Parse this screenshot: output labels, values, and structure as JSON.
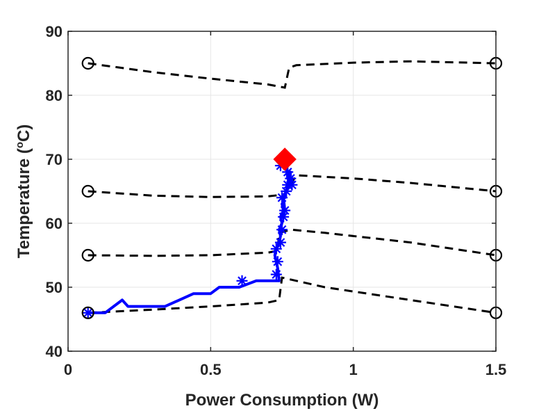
{
  "chart_data": {
    "type": "line",
    "title": "",
    "xlabel": "Power Consumption (W)",
    "ylabel_main": "Temperature (",
    "ylabel_sup": "o",
    "ylabel_end": "C)",
    "xlim": [
      0,
      1.5
    ],
    "ylim": [
      40,
      90
    ],
    "xticks": [
      0,
      0.5,
      1,
      1.5
    ],
    "xtick_labels": [
      "0",
      "0.5",
      "1",
      "1.5"
    ],
    "yticks": [
      40,
      50,
      60,
      70,
      80,
      90
    ],
    "ytick_labels": [
      "40",
      "50",
      "60",
      "70",
      "80",
      "90"
    ],
    "grid": true,
    "colors": {
      "boundary": "#000000",
      "trajectory": "#0000ff",
      "target": "#ff0000",
      "axis": "#262626"
    },
    "boundary_series": [
      {
        "name": "boundary-1",
        "x": [
          0.07,
          0.3,
          0.5,
          0.7,
          0.74,
          0.75,
          0.9,
          1.2,
          1.5
        ],
        "y": [
          46,
          46.5,
          47,
          47.6,
          48,
          51.5,
          50,
          48,
          46
        ]
      },
      {
        "name": "boundary-2",
        "x": [
          0.07,
          0.3,
          0.5,
          0.7,
          0.735,
          0.74,
          0.78,
          0.9,
          1.2,
          1.5
        ],
        "y": [
          55,
          54.9,
          55,
          55.4,
          55.7,
          58.5,
          59,
          58.5,
          57,
          55
        ]
      },
      {
        "name": "boundary-3",
        "x": [
          0.07,
          0.3,
          0.5,
          0.7,
          0.76,
          0.8,
          1.0,
          1.2,
          1.5
        ],
        "y": [
          65,
          64.3,
          64.1,
          64.2,
          64.5,
          67.5,
          67,
          66.3,
          65
        ]
      },
      {
        "name": "boundary-4",
        "x": [
          0.07,
          0.3,
          0.5,
          0.7,
          0.76,
          0.775,
          0.8,
          1.0,
          1.2,
          1.5
        ],
        "y": [
          85,
          83.6,
          82.6,
          81.7,
          81.2,
          84.3,
          84.7,
          85.1,
          85.3,
          85
        ]
      }
    ],
    "boundary_endpoints": [
      {
        "x": 0.07,
        "y": 46
      },
      {
        "x": 0.07,
        "y": 55
      },
      {
        "x": 0.07,
        "y": 65
      },
      {
        "x": 0.07,
        "y": 85
      },
      {
        "x": 1.5,
        "y": 46
      },
      {
        "x": 1.5,
        "y": 55
      },
      {
        "x": 1.5,
        "y": 65
      },
      {
        "x": 1.5,
        "y": 85
      }
    ],
    "trajectory": {
      "name": "operating-trajectory",
      "x": [
        0.07,
        0.13,
        0.19,
        0.21,
        0.34,
        0.44,
        0.5,
        0.53,
        0.6,
        0.66,
        0.74,
        0.735,
        0.725,
        0.73,
        0.74,
        0.745,
        0.74,
        0.75,
        0.745,
        0.755,
        0.75,
        0.76,
        0.755,
        0.765,
        0.76,
        0.77,
        0.765,
        0.775,
        0.77,
        0.78,
        0.775,
        0.785,
        0.78,
        0.775,
        0.77,
        0.765
      ],
      "y": [
        46,
        46,
        48,
        47,
        47,
        49,
        49,
        50,
        50,
        51,
        51,
        53,
        55,
        56,
        57,
        58,
        59,
        60,
        61,
        62,
        63,
        62,
        64,
        65,
        64,
        66,
        65,
        67,
        66,
        68,
        66,
        67,
        66,
        68,
        67,
        69
      ]
    },
    "trajectory_markers": [
      {
        "x": 0.07,
        "y": 46
      },
      {
        "x": 0.61,
        "y": 51
      },
      {
        "x": 0.73,
        "y": 52
      },
      {
        "x": 0.735,
        "y": 54
      },
      {
        "x": 0.73,
        "y": 56
      },
      {
        "x": 0.745,
        "y": 57
      },
      {
        "x": 0.75,
        "y": 59
      },
      {
        "x": 0.755,
        "y": 61
      },
      {
        "x": 0.76,
        "y": 62
      },
      {
        "x": 0.75,
        "y": 64
      },
      {
        "x": 0.765,
        "y": 65
      },
      {
        "x": 0.77,
        "y": 66
      },
      {
        "x": 0.78,
        "y": 67
      },
      {
        "x": 0.77,
        "y": 68
      },
      {
        "x": 0.745,
        "y": 69
      },
      {
        "x": 0.785,
        "y": 66
      }
    ],
    "target_point": {
      "name": "target",
      "x": 0.76,
      "y": 70
    }
  }
}
